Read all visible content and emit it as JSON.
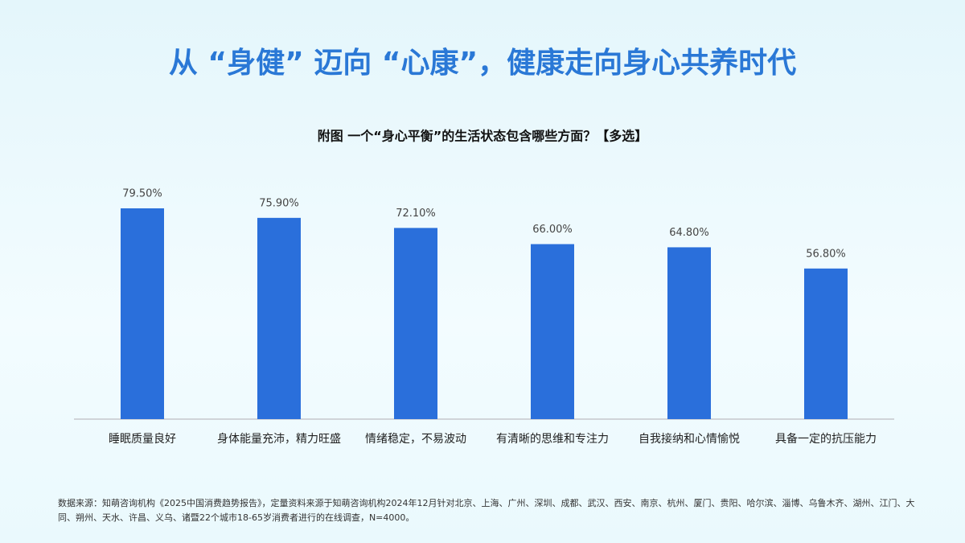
{
  "chart_data": {
    "type": "bar",
    "page_title": "从 “身健” 迈向 “心康”，健康走向身心共养时代",
    "title": "附图 一个“身心平衡”的生活状态包含哪些方面？【多选】",
    "categories": [
      "睡眠质量良好",
      "身体能量充沛，精力旺盛",
      "情绪稳定，不易波动",
      "有清晰的思维和专注力",
      "自我接纳和心情愉悦",
      "具备一定的抗压能力"
    ],
    "values": [
      79.5,
      75.9,
      72.1,
      66.0,
      64.8,
      56.8
    ],
    "value_labels": [
      "79.50%",
      "75.90%",
      "72.10%",
      "66.00%",
      "64.80%",
      "56.80%"
    ],
    "color": "#2a6fdb",
    "ylim": [
      0,
      100
    ],
    "source": "数据来源：知萌咨询机构《2025中国消费趋势报告》，定量资料来源于知萌咨询机构2024年12月针对北京、上海、广州、深圳、成都、武汉、西安、南京、杭州、厦门、贵阳、哈尔滨、淄博、乌鲁木齐、湖州、江门、大同、朔州、天水、许昌、义乌、诸暨22个城市18-65岁消费者进行的在线调查，N=4000。"
  }
}
